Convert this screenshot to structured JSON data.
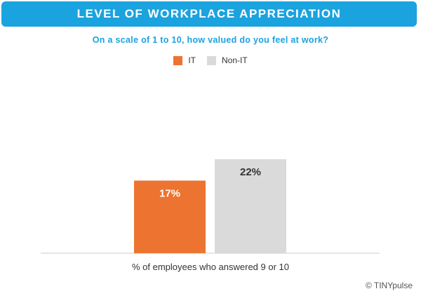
{
  "chart_data": {
    "type": "bar",
    "title": "LEVEL OF WORKPLACE APPRECIATION",
    "subtitle": "On a scale of 1 to 10, how valued do you feel at work?",
    "xlabel": "% of employees who answered 9 or 10",
    "ylabel": "",
    "categories": [
      "IT",
      "Non-IT"
    ],
    "values": [
      17,
      22
    ],
    "value_labels": [
      "17%",
      "22%"
    ],
    "colors": [
      "#ec7430",
      "#dadada"
    ],
    "label_colors": [
      "#ffffff",
      "#333333"
    ],
    "legend": [
      {
        "label": "IT",
        "color": "#ec7430"
      },
      {
        "label": "Non-IT",
        "color": "#dadada"
      }
    ],
    "legend_position": "top-center",
    "ylim": [
      0,
      22
    ],
    "grid": false
  },
  "footer": {
    "credit_symbol": "©",
    "credit_text": "TINYpulse"
  }
}
